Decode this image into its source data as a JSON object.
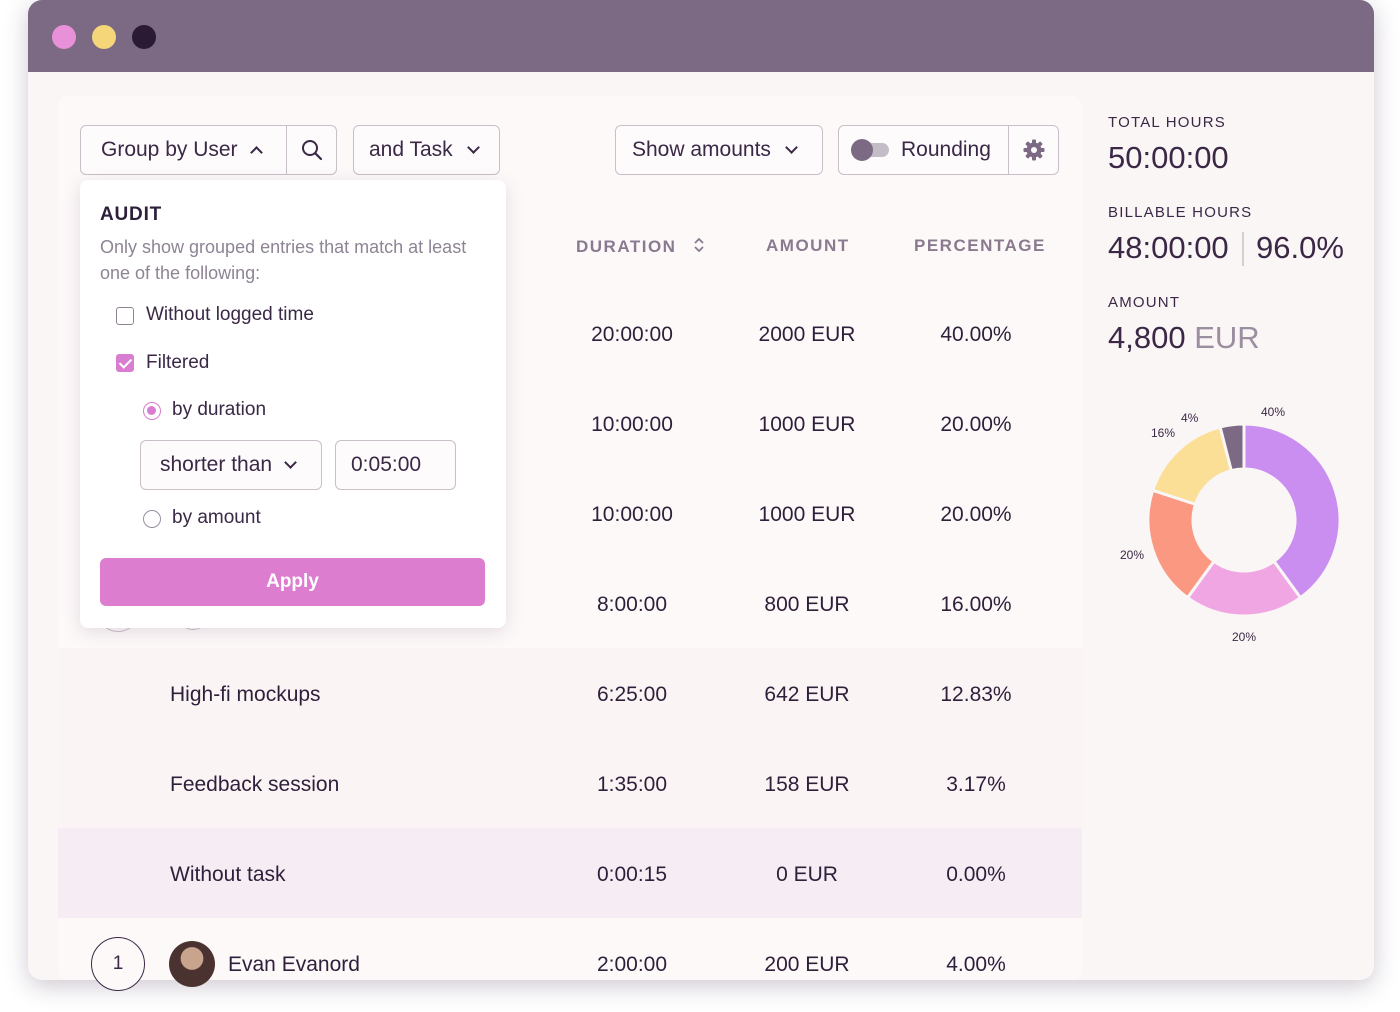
{
  "window": {
    "dot_colors": [
      "#e890d8",
      "#f5d77a",
      "#2b1a33"
    ]
  },
  "toolbar": {
    "group_by": "Group by User",
    "and_task": "and Task",
    "show_amounts": "Show amounts",
    "rounding": "Rounding"
  },
  "table": {
    "headers": {
      "duration": "DURATION",
      "amount": "AMOUNT",
      "percentage": "PERCENTAGE"
    },
    "rows": [
      {
        "name": "",
        "duration": "20:00:00",
        "amount": "2000 EUR",
        "percentage": "40.00%"
      },
      {
        "name": "",
        "duration": "10:00:00",
        "amount": "1000 EUR",
        "percentage": "20.00%"
      },
      {
        "name": "",
        "duration": "10:00:00",
        "amount": "1000 EUR",
        "percentage": "20.00%"
      },
      {
        "name": "",
        "duration": "8:00:00",
        "amount": "800 EUR",
        "percentage": "16.00%"
      },
      {
        "name": "High-fi mockups",
        "duration": "6:25:00",
        "amount": "642 EUR",
        "percentage": "12.83%"
      },
      {
        "name": "Feedback session",
        "duration": "1:35:00",
        "amount": "158 EUR",
        "percentage": "3.17%"
      },
      {
        "name": "Without task",
        "duration": "0:00:15",
        "amount": "0 EUR",
        "percentage": "0.00%"
      },
      {
        "name": "Evan Evanord",
        "badge": "1",
        "duration": "2:00:00",
        "amount": "200 EUR",
        "percentage": "4.00%"
      }
    ]
  },
  "audit": {
    "title": "AUDIT",
    "description": "Only show grouped entries that match at least one of the following:",
    "without_logged_time": "Without logged time",
    "filtered": "Filtered",
    "by_duration": "by duration",
    "comparator": "shorter than",
    "duration_value": "0:05:00",
    "by_amount": "by amount",
    "apply": "Apply"
  },
  "summary": {
    "total_hours_label": "TOTAL HOURS",
    "total_hours": "50:00:00",
    "billable_hours_label": "BILLABLE HOURS",
    "billable_hours": "48:00:00",
    "billable_percent": "96.0%",
    "amount_label": "AMOUNT",
    "amount_value": "4,800",
    "amount_currency": "EUR"
  },
  "chart_data": {
    "type": "pie",
    "donut": true,
    "values": [
      40,
      20,
      20,
      16,
      4
    ],
    "labels": [
      "40%",
      "20%",
      "20%",
      "16%",
      "4%"
    ],
    "colors": [
      "#c98ef0",
      "#f0a6e3",
      "#fa9882",
      "#fbdf96",
      "#7c6a85"
    ]
  }
}
